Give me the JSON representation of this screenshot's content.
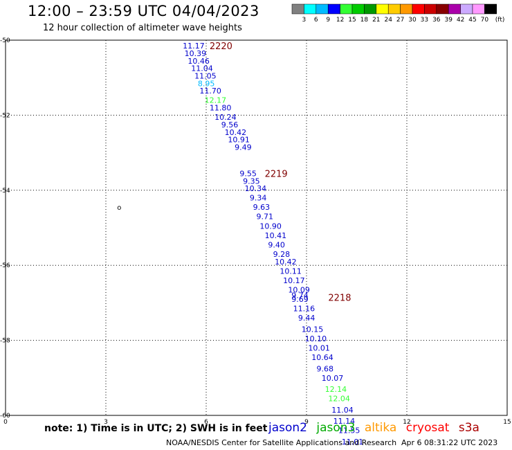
{
  "title": "12:00 – 23:59 UTC 04/04/2023",
  "subtitle": "12 hour collection of altimeter wave heights",
  "note": "note: 1) Time is in UTC; 2) SWH is in feet",
  "satellites": [
    {
      "name": "jason2",
      "color": "#0000cc"
    },
    {
      "name": "jason3",
      "color": "#00aa00"
    },
    {
      "name": "altika",
      "color": "#ff9900"
    },
    {
      "name": "cryosat",
      "color": "#ff0000"
    },
    {
      "name": "s3a",
      "color": "#aa0000"
    }
  ],
  "footer": {
    "credit": "NOAA/NESDIS Center for Satellite Applications and Research",
    "timestamp": "Apr  6 08:31:22 UTC 2023"
  },
  "color_scale": {
    "unit": "(ft)",
    "labels": [
      "3",
      "6",
      "9",
      "12",
      "15",
      "18",
      "21",
      "24",
      "27",
      "30",
      "33",
      "36",
      "39",
      "42",
      "45",
      "70"
    ],
    "colors": [
      "#808080",
      "#00ffff",
      "#00bbff",
      "#0000ff",
      "#33ff33",
      "#00cc00",
      "#009900",
      "#ffff00",
      "#ffcc00",
      "#ff9900",
      "#ff0000",
      "#cc0000",
      "#880000",
      "#aa00aa",
      "#ccaaff",
      "#ff99ff",
      "#000000"
    ]
  },
  "chart_data": {
    "type": "scatter",
    "x_ticks": [
      0,
      3,
      6,
      9,
      12,
      15
    ],
    "y_ticks": [
      -50,
      -52,
      -54,
      -56,
      -58,
      -60
    ],
    "xlim": [
      0,
      15
    ],
    "ylim": [
      -60,
      -50
    ],
    "grid": true,
    "land_marker": {
      "x": 3.4,
      "y": -54.45,
      "label": "o"
    },
    "track_labels": [
      {
        "text": "2220",
        "x": 6.1,
        "y": -50.15
      },
      {
        "text": "2219",
        "x": 7.75,
        "y": -53.55
      },
      {
        "text": "2218",
        "x": 9.65,
        "y": -56.85
      }
    ],
    "points": [
      {
        "x": 5.3,
        "y": -50.15,
        "v": "11.17",
        "c": "#0000cc"
      },
      {
        "x": 5.35,
        "y": -50.35,
        "v": "10.39",
        "c": "#0000cc"
      },
      {
        "x": 5.45,
        "y": -50.55,
        "v": "10.46",
        "c": "#0000cc"
      },
      {
        "x": 5.55,
        "y": -50.75,
        "v": "11.04",
        "c": "#0000cc"
      },
      {
        "x": 5.65,
        "y": -50.95,
        "v": "11.05",
        "c": "#0000cc"
      },
      {
        "x": 5.75,
        "y": -51.15,
        "v": "8.95",
        "c": "#00bbff"
      },
      {
        "x": 5.8,
        "y": -51.35,
        "v": "11.70",
        "c": "#0000cc"
      },
      {
        "x": 5.95,
        "y": -51.6,
        "v": "12.17",
        "c": "#33ff33"
      },
      {
        "x": 6.1,
        "y": -51.8,
        "v": "11.80",
        "c": "#0000cc"
      },
      {
        "x": 6.25,
        "y": -52.05,
        "v": "10.24",
        "c": "#0000cc"
      },
      {
        "x": 6.45,
        "y": -52.25,
        "v": "9.56",
        "c": "#0000cc"
      },
      {
        "x": 6.55,
        "y": -52.45,
        "v": "10.42",
        "c": "#0000cc"
      },
      {
        "x": 6.65,
        "y": -52.65,
        "v": "10.91",
        "c": "#0000cc"
      },
      {
        "x": 6.85,
        "y": -52.85,
        "v": "9.49",
        "c": "#0000cc"
      },
      {
        "x": 7.0,
        "y": -53.55,
        "v": "9.55",
        "c": "#0000cc"
      },
      {
        "x": 7.1,
        "y": -53.75,
        "v": "9.35",
        "c": "#0000cc"
      },
      {
        "x": 7.15,
        "y": -53.95,
        "v": "10.34",
        "c": "#0000cc"
      },
      {
        "x": 7.3,
        "y": -54.2,
        "v": "9.34",
        "c": "#0000cc"
      },
      {
        "x": 7.4,
        "y": -54.45,
        "v": "9.63",
        "c": "#0000cc"
      },
      {
        "x": 7.5,
        "y": -54.7,
        "v": "9.71",
        "c": "#0000cc"
      },
      {
        "x": 7.6,
        "y": -54.95,
        "v": "10.90",
        "c": "#0000cc"
      },
      {
        "x": 7.75,
        "y": -55.2,
        "v": "10.41",
        "c": "#0000cc"
      },
      {
        "x": 7.85,
        "y": -55.45,
        "v": "9.40",
        "c": "#0000cc"
      },
      {
        "x": 8.0,
        "y": -55.7,
        "v": "9.28",
        "c": "#0000cc"
      },
      {
        "x": 8.05,
        "y": -55.9,
        "v": "10.42",
        "c": "#0000cc"
      },
      {
        "x": 8.2,
        "y": -56.15,
        "v": "10.11",
        "c": "#0000cc"
      },
      {
        "x": 8.3,
        "y": -56.4,
        "v": "10.17",
        "c": "#0000cc"
      },
      {
        "x": 8.45,
        "y": -56.65,
        "v": "10.09",
        "c": "#0000cc"
      },
      {
        "x": 8.55,
        "y": -56.8,
        "v": "9.74",
        "c": "#0000cc"
      },
      {
        "x": 8.55,
        "y": -56.9,
        "v": "9.69",
        "c": "#0000cc"
      },
      {
        "x": 8.6,
        "y": -57.15,
        "v": "11.16",
        "c": "#0000cc"
      },
      {
        "x": 8.75,
        "y": -57.4,
        "v": "9.44",
        "c": "#0000cc"
      },
      {
        "x": 8.85,
        "y": -57.7,
        "v": "10.15",
        "c": "#0000cc"
      },
      {
        "x": 8.95,
        "y": -57.95,
        "v": "10.10",
        "c": "#0000cc"
      },
      {
        "x": 9.05,
        "y": -58.2,
        "v": "10.01",
        "c": "#0000cc"
      },
      {
        "x": 9.15,
        "y": -58.45,
        "v": "10.64",
        "c": "#0000cc"
      },
      {
        "x": 9.3,
        "y": -58.75,
        "v": "9.68",
        "c": "#0000cc"
      },
      {
        "x": 9.45,
        "y": -59.0,
        "v": "10.07",
        "c": "#0000cc"
      },
      {
        "x": 9.55,
        "y": -59.3,
        "v": "12.14",
        "c": "#33ff33"
      },
      {
        "x": 9.65,
        "y": -59.55,
        "v": "12.04",
        "c": "#33ff33"
      },
      {
        "x": 9.75,
        "y": -59.85,
        "v": "11.04",
        "c": "#0000cc"
      },
      {
        "x": 9.8,
        "y": -60.15,
        "v": "11.14",
        "c": "#0000cc"
      },
      {
        "x": 9.95,
        "y": -60.4,
        "v": "11.55",
        "c": "#0000cc"
      },
      {
        "x": 10.05,
        "y": -60.7,
        "v": "11.01",
        "c": "#0000cc"
      }
    ]
  }
}
